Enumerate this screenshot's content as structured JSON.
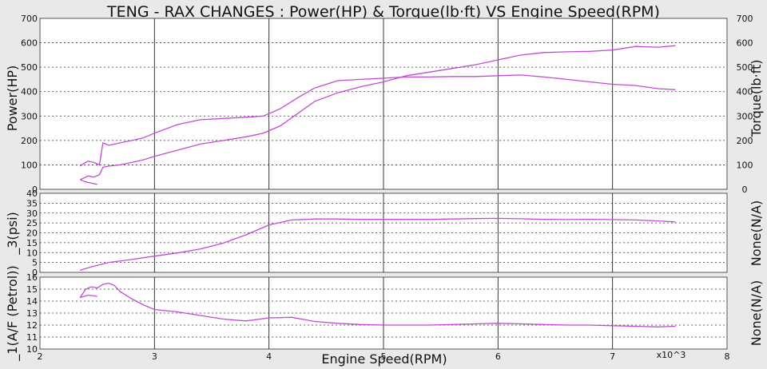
{
  "chart_data": {
    "type": "line",
    "title": "TENG - RAX CHANGES : Power(HP) & Torque(lb·ft) VS Engine Speed(RPM)",
    "xlabel": "Engine Speed(RPM)",
    "x_multiplier_label": "x10^3",
    "xlim": [
      2,
      8
    ],
    "x_ticks": [
      "2",
      "3",
      "4",
      "5",
      "6",
      "7",
      "8"
    ],
    "x_tick_values": [
      2,
      3,
      4,
      5,
      6,
      7,
      8
    ],
    "grid": true,
    "line_color": "#c24bd6",
    "panels": [
      {
        "ylabel_left": "Power(HP)",
        "ylabel_right": "Torque(lb·ft)",
        "ylim": [
          0,
          700
        ],
        "y_ticks": [
          "0",
          "100",
          "200",
          "300",
          "400",
          "500",
          "600",
          "700"
        ],
        "y_tick_values": [
          0,
          100,
          200,
          300,
          400,
          500,
          600,
          700
        ],
        "show_right_ticks": true,
        "series": [
          {
            "x": [
              2.35,
              2.38,
              2.42,
              2.47,
              2.52,
              2.55,
              2.6,
              2.7,
              2.8,
              2.9,
              3.0,
              3.2,
              3.4,
              3.6,
              3.8,
              3.95,
              4.1,
              4.25,
              4.4,
              4.6,
              4.8,
              5.0,
              5.2,
              5.4,
              5.6,
              5.8,
              6.0,
              6.2,
              6.4,
              6.6,
              6.8,
              7.0,
              7.2,
              7.4,
              7.55
            ],
            "y": [
              95,
              105,
              115,
              110,
              100,
              190,
              180,
              190,
              200,
              210,
              230,
              265,
              285,
              290,
              295,
              300,
              330,
              375,
              415,
              445,
              450,
              455,
              460,
              460,
              462,
              462,
              465,
              468,
              460,
              450,
              440,
              430,
              425,
              412,
              408
            ]
          },
          {
            "x": [
              2.35,
              2.38,
              2.42,
              2.47,
              2.52,
              2.55,
              2.6,
              2.7,
              2.8,
              2.9,
              3.0,
              3.2,
              3.4,
              3.6,
              3.8,
              3.95,
              4.1,
              4.25,
              4.4,
              4.6,
              4.8,
              5.0,
              5.2,
              5.4,
              5.6,
              5.8,
              6.0,
              6.2,
              6.4,
              6.6,
              6.8,
              7.0,
              7.2,
              7.4,
              7.55
            ],
            "y": [
              40,
              45,
              55,
              50,
              60,
              90,
              95,
              100,
              110,
              120,
              135,
              160,
              185,
              200,
              215,
              230,
              260,
              310,
              360,
              395,
              420,
              440,
              465,
              480,
              495,
              510,
              530,
              550,
              560,
              563,
              565,
              570,
              585,
              582,
              588
            ]
          },
          {
            "x": [
              2.35,
              2.4,
              2.45,
              2.5
            ],
            "y": [
              40,
              30,
              25,
              20
            ]
          }
        ]
      },
      {
        "ylabel_left": "_3(psi)",
        "ylabel_right": "None(N/A)",
        "ylim": [
          0,
          40
        ],
        "y_ticks": [
          "0",
          "5",
          "10",
          "15",
          "20",
          "25",
          "30",
          "35",
          "40"
        ],
        "y_tick_values": [
          0,
          5,
          10,
          15,
          20,
          25,
          30,
          35,
          40
        ],
        "show_right_ticks": false,
        "series": [
          {
            "x": [
              2.35,
              2.4,
              2.5,
              2.6,
              2.8,
              3.0,
              3.2,
              3.4,
              3.6,
              3.8,
              4.0,
              4.2,
              4.4,
              4.6,
              4.8,
              5.0,
              5.2,
              5.4,
              5.6,
              5.8,
              6.0,
              6.2,
              6.4,
              6.6,
              6.8,
              7.0,
              7.2,
              7.4,
              7.55
            ],
            "y": [
              1.0,
              2.0,
              3.5,
              5.0,
              6.5,
              8.2,
              9.8,
              11.8,
              14.8,
              19.0,
              24.0,
              26.5,
              27.0,
              27.0,
              26.8,
              26.8,
              26.8,
              26.8,
              27.0,
              27.2,
              27.3,
              27.1,
              26.8,
              26.7,
              26.8,
              26.7,
              26.5,
              26.0,
              25.5
            ]
          }
        ]
      },
      {
        "ylabel_left": "_1(A/F (Petrol))",
        "ylabel_right": "None(N/A)",
        "ylim": [
          10,
          16
        ],
        "y_ticks": [
          "10",
          "11",
          "12",
          "13",
          "14",
          "15",
          "16"
        ],
        "y_tick_values": [
          10,
          11,
          12,
          13,
          14,
          15,
          16
        ],
        "show_right_ticks": false,
        "series": [
          {
            "x": [
              2.35,
              2.4,
              2.45,
              2.5,
              2.55,
              2.6,
              2.65,
              2.7,
              2.8,
              2.9,
              3.0,
              3.2,
              3.4,
              3.6,
              3.8,
              4.0,
              4.2,
              4.4,
              4.6,
              4.8,
              5.0,
              5.2,
              5.4,
              5.6,
              5.8,
              6.0,
              6.2,
              6.4,
              6.6,
              6.8,
              7.0,
              7.2,
              7.4,
              7.55
            ],
            "y": [
              14.3,
              15.0,
              15.2,
              15.1,
              15.4,
              15.5,
              15.3,
              14.8,
              14.2,
              13.7,
              13.3,
              13.1,
              12.8,
              12.5,
              12.35,
              12.6,
              12.65,
              12.3,
              12.15,
              12.05,
              12.0,
              12.0,
              12.0,
              12.05,
              12.1,
              12.15,
              12.1,
              12.05,
              12.0,
              12.0,
              11.95,
              11.9,
              11.85,
              11.9
            ]
          },
          {
            "x": [
              2.35,
              2.42,
              2.5
            ],
            "y": [
              14.3,
              14.5,
              14.4
            ]
          }
        ]
      }
    ]
  }
}
